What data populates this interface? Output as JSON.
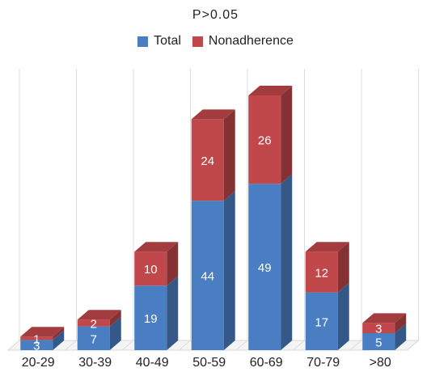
{
  "chart_data": {
    "type": "bar",
    "stacked": true,
    "three_d": true,
    "title": "P>0.05",
    "categories": [
      "20-29",
      "30-39",
      "40-49",
      "50-59",
      "60-69",
      "70-79",
      ">80"
    ],
    "series": [
      {
        "name": "Total",
        "values": [
          3,
          7,
          19,
          44,
          49,
          17,
          5
        ],
        "color": "#4a7ec2"
      },
      {
        "name": "Nonadherence",
        "values": [
          1,
          2,
          10,
          24,
          26,
          12,
          3
        ],
        "color": "#c0474a"
      }
    ],
    "ylim": [
      0,
      75
    ],
    "grid": true,
    "legend_position": "top"
  }
}
